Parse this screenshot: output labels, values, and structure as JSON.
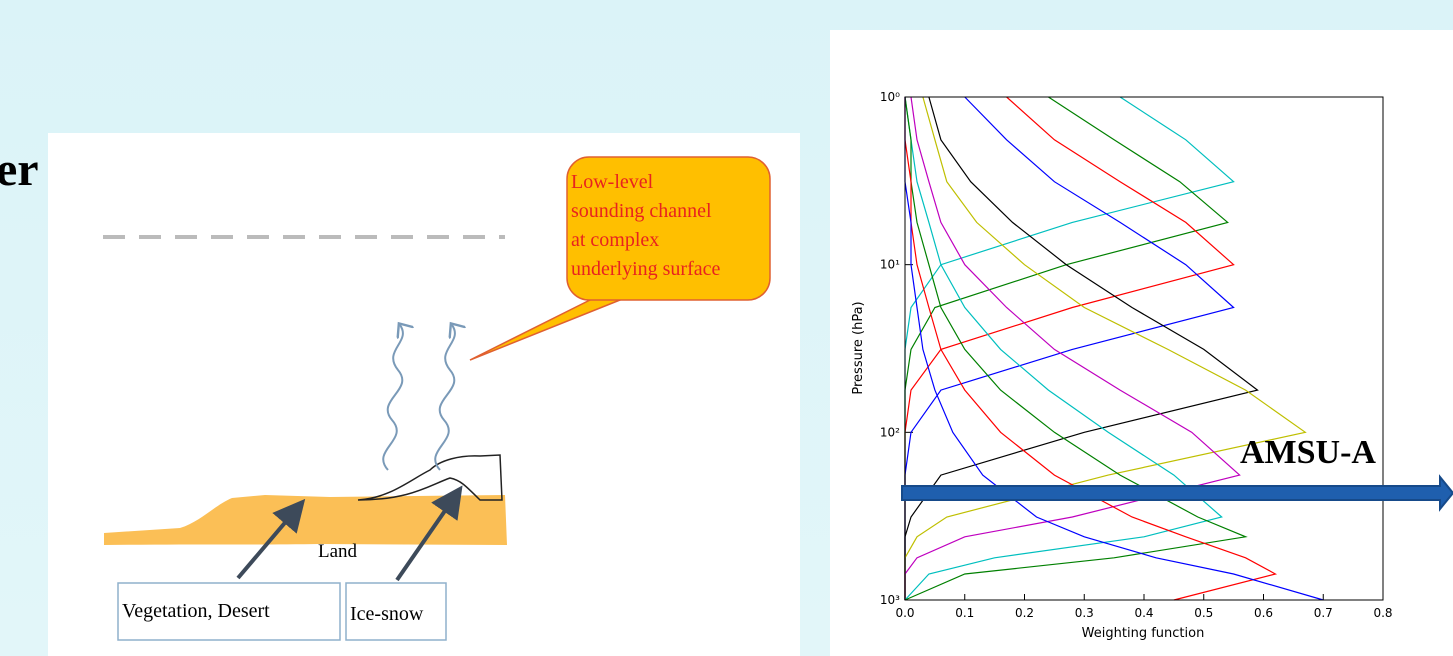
{
  "slide_fragment": "er",
  "diagram": {
    "callout_lines": [
      "Low-level",
      "sounding channel",
      "at complex",
      "underlying surface"
    ],
    "land_label": "Land",
    "boxes": [
      "Vegetation, Desert",
      "Ice-snow"
    ]
  },
  "chart_data": {
    "type": "line",
    "xlabel": "Weighting function",
    "ylabel": "Pressure (hPa)",
    "annotation": "AMSU-A",
    "xlim": [
      0,
      0.8
    ],
    "ylim": [
      1000,
      1
    ],
    "log_y": true,
    "xticks": [
      {
        "value": 0,
        "label": "0.0"
      },
      0.1,
      0.2,
      0.3,
      0.4,
      0.5,
      0.6,
      0.7,
      0.8
    ],
    "yticks": [
      {
        "value": 1,
        "label": "10⁰"
      },
      {
        "value": 10,
        "label": "10¹"
      },
      {
        "value": 100,
        "label": "10²"
      },
      {
        "value": 1000,
        "label": "10³"
      }
    ],
    "y": [
      1,
      1.8,
      3.2,
      5.6,
      10,
      18,
      32,
      56,
      100,
      180,
      320,
      420,
      560,
      700,
      1000
    ],
    "series": [
      {
        "color": "#00bfbf",
        "values": [
          0.36,
          0.47,
          0.55,
          0.28,
          0.06,
          0.01,
          0,
          0,
          0,
          0,
          0,
          0,
          0,
          0,
          0
        ]
      },
      {
        "color": "#008000",
        "values": [
          0.24,
          0.35,
          0.46,
          0.54,
          0.27,
          0.05,
          0.01,
          0,
          0,
          0,
          0,
          0,
          0,
          0,
          0
        ]
      },
      {
        "color": "#ff0000",
        "values": [
          0.17,
          0.25,
          0.36,
          0.47,
          0.55,
          0.28,
          0.06,
          0.01,
          0,
          0,
          0,
          0,
          0,
          0,
          0
        ]
      },
      {
        "color": "#0000ff",
        "values": [
          0.1,
          0.17,
          0.25,
          0.36,
          0.47,
          0.55,
          0.28,
          0.06,
          0.01,
          0,
          0,
          0,
          0,
          0,
          0
        ]
      },
      {
        "color": "#000000",
        "values": [
          0.04,
          0.06,
          0.11,
          0.18,
          0.27,
          0.38,
          0.5,
          0.59,
          0.3,
          0.06,
          0.01,
          0,
          0,
          0,
          0
        ]
      },
      {
        "color": "#bfbf00",
        "values": [
          0.03,
          0.05,
          0.07,
          0.12,
          0.2,
          0.3,
          0.44,
          0.57,
          0.67,
          0.34,
          0.07,
          0.02,
          0,
          0,
          0
        ]
      },
      {
        "color": "#bf00bf",
        "values": [
          0.01,
          0.02,
          0.04,
          0.06,
          0.1,
          0.17,
          0.25,
          0.36,
          0.48,
          0.56,
          0.28,
          0.1,
          0.02,
          0,
          0
        ]
      },
      {
        "color": "#00bfbf",
        "values": [
          0,
          0.01,
          0.02,
          0.04,
          0.06,
          0.1,
          0.16,
          0.24,
          0.34,
          0.45,
          0.53,
          0.4,
          0.15,
          0.04,
          0
        ]
      },
      {
        "color": "#008000",
        "values": [
          0,
          0.01,
          0.01,
          0.02,
          0.04,
          0.06,
          0.1,
          0.16,
          0.25,
          0.36,
          0.49,
          0.57,
          0.35,
          0.1,
          0
        ]
      },
      {
        "color": "#ff0000",
        "values": [
          0,
          0,
          0.01,
          0.01,
          0.02,
          0.04,
          0.06,
          0.1,
          0.16,
          0.25,
          0.38,
          0.47,
          0.57,
          0.62,
          0.45
        ]
      },
      {
        "color": "#0000ff",
        "values": [
          0,
          0,
          0,
          0.01,
          0.01,
          0.02,
          0.03,
          0.05,
          0.08,
          0.13,
          0.22,
          0.3,
          0.42,
          0.55,
          0.7
        ]
      }
    ]
  }
}
